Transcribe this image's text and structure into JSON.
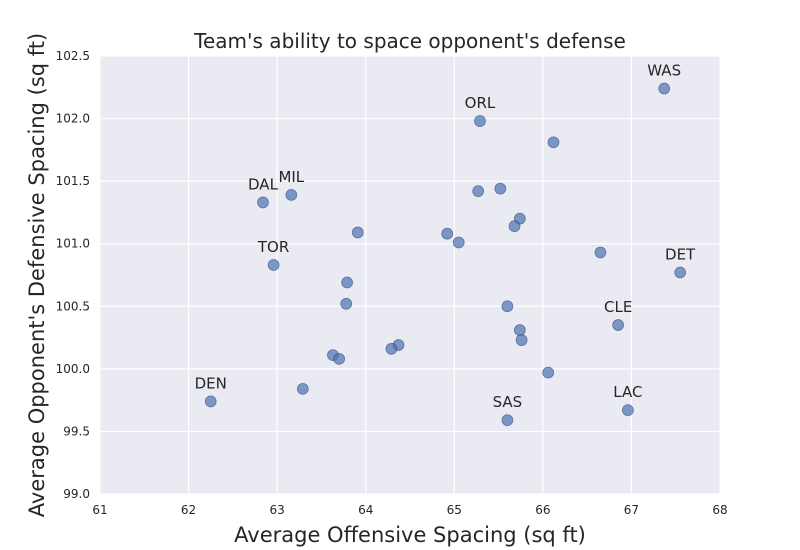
{
  "chart_data": {
    "type": "scatter",
    "title": "Team's ability to space opponent's defense",
    "xlabel": "Average Offensive Spacing (sq ft)",
    "ylabel": "Average Opponent's Defensive Spacing (sq ft)",
    "xlim": [
      61,
      68
    ],
    "ylim": [
      99.0,
      102.5
    ],
    "xticks": [
      "61",
      "62",
      "63",
      "64",
      "65",
      "66",
      "67",
      "68"
    ],
    "yticks": [
      "99.0",
      "99.5",
      "100.0",
      "100.5",
      "101.0",
      "101.5",
      "102.0",
      "102.5"
    ],
    "grid": true,
    "background": "#eaeaf2",
    "marker_color": "#4c72b0",
    "points": [
      {
        "x": 67.37,
        "y": 102.24,
        "label": "WAS"
      },
      {
        "x": 65.29,
        "y": 101.98,
        "label": "ORL"
      },
      {
        "x": 66.12,
        "y": 101.81,
        "label": ""
      },
      {
        "x": 65.52,
        "y": 101.44,
        "label": ""
      },
      {
        "x": 65.27,
        "y": 101.42,
        "label": ""
      },
      {
        "x": 63.16,
        "y": 101.39,
        "label": "MIL"
      },
      {
        "x": 62.84,
        "y": 101.33,
        "label": "DAL"
      },
      {
        "x": 65.74,
        "y": 101.2,
        "label": ""
      },
      {
        "x": 65.68,
        "y": 101.14,
        "label": ""
      },
      {
        "x": 63.91,
        "y": 101.09,
        "label": ""
      },
      {
        "x": 64.92,
        "y": 101.08,
        "label": ""
      },
      {
        "x": 65.05,
        "y": 101.01,
        "label": ""
      },
      {
        "x": 66.65,
        "y": 100.93,
        "label": ""
      },
      {
        "x": 62.96,
        "y": 100.83,
        "label": "TOR"
      },
      {
        "x": 67.55,
        "y": 100.77,
        "label": "DET"
      },
      {
        "x": 63.79,
        "y": 100.69,
        "label": ""
      },
      {
        "x": 63.78,
        "y": 100.52,
        "label": ""
      },
      {
        "x": 65.6,
        "y": 100.5,
        "label": ""
      },
      {
        "x": 66.85,
        "y": 100.35,
        "label": "CLE"
      },
      {
        "x": 65.74,
        "y": 100.31,
        "label": ""
      },
      {
        "x": 65.76,
        "y": 100.23,
        "label": ""
      },
      {
        "x": 64.37,
        "y": 100.19,
        "label": ""
      },
      {
        "x": 64.29,
        "y": 100.16,
        "label": ""
      },
      {
        "x": 63.63,
        "y": 100.11,
        "label": ""
      },
      {
        "x": 63.7,
        "y": 100.08,
        "label": ""
      },
      {
        "x": 66.06,
        "y": 99.97,
        "label": ""
      },
      {
        "x": 63.29,
        "y": 99.84,
        "label": ""
      },
      {
        "x": 62.25,
        "y": 99.74,
        "label": "DEN"
      },
      {
        "x": 66.96,
        "y": 99.67,
        "label": "LAC"
      },
      {
        "x": 65.6,
        "y": 99.59,
        "label": "SAS"
      }
    ]
  }
}
